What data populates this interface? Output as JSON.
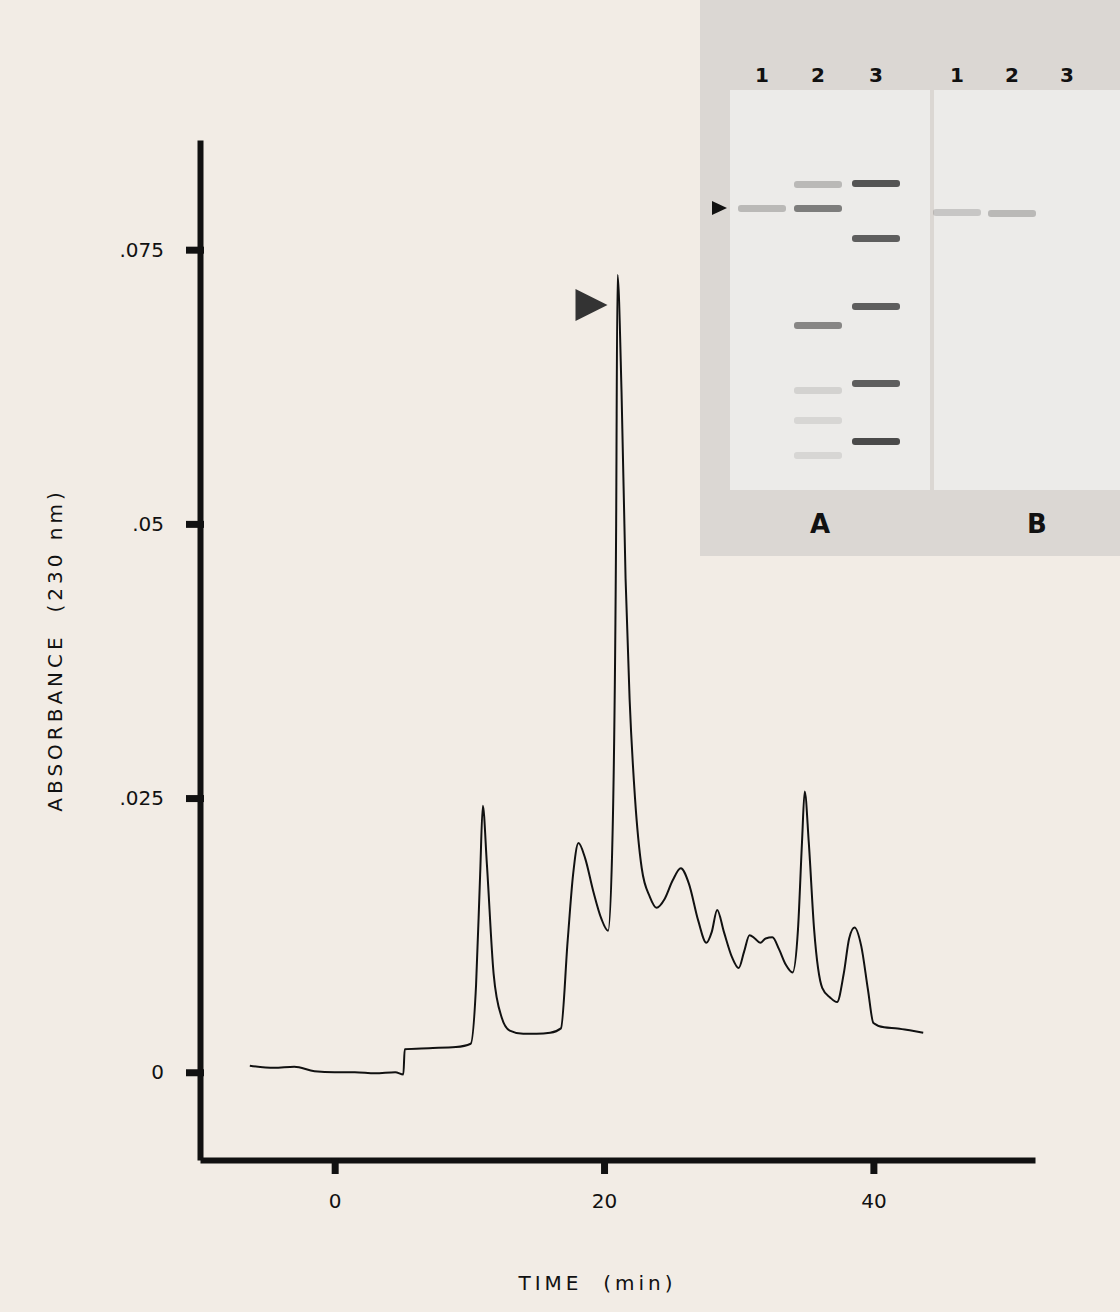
{
  "chart_data": {
    "type": "line",
    "x_label": "TIME  (min)",
    "y_label": "ABSORBANCE  (230 nm)",
    "color": "#111111",
    "x": [
      -6.3,
      -4.5,
      -3,
      -1.5,
      0,
      1.5,
      3,
      4.5,
      5.1,
      5.2,
      7,
      9,
      10.1,
      10.5,
      10.8,
      11.0,
      11.3,
      11.8,
      12.4,
      13,
      14,
      15,
      16,
      16.8,
      17.3,
      17.7,
      18.1,
      18.6,
      19.2,
      19.8,
      20.3,
      20.6,
      20.9,
      21.0,
      21.3,
      21.6,
      21.9,
      22.3,
      22.8,
      23.4,
      23.9,
      24.5,
      25.1,
      25.7,
      26.3,
      27.0,
      27.6,
      28.0,
      28.4,
      28.9,
      29.5,
      30.0,
      30.4,
      30.8,
      31.2,
      31.6,
      32.0,
      32.5,
      33.0,
      33.5,
      34.0,
      34.4,
      34.7,
      34.9,
      35.2,
      35.6,
      36.2,
      36.8,
      37.3,
      37.8,
      38.2,
      38.6,
      39.1,
      39.6,
      40.0,
      40.8,
      41.8,
      42.8,
      43.7
    ],
    "values": [
      0.0006,
      0.0004,
      0.0005,
      0.0001,
      0.0,
      0.0,
      -0.0001,
      0.0,
      -0.0002,
      0.0021,
      0.0022,
      0.0023,
      0.0026,
      0.008,
      0.018,
      0.0243,
      0.019,
      0.009,
      0.005,
      0.0038,
      0.0035,
      0.0035,
      0.0036,
      0.004,
      0.012,
      0.018,
      0.0209,
      0.0195,
      0.0165,
      0.014,
      0.0129,
      0.02,
      0.05,
      0.0727,
      0.062,
      0.045,
      0.034,
      0.025,
      0.0186,
      0.016,
      0.015,
      0.0158,
      0.0175,
      0.0186,
      0.0172,
      0.0138,
      0.0118,
      0.0128,
      0.0148,
      0.0128,
      0.0105,
      0.0095,
      0.011,
      0.0125,
      0.0122,
      0.0118,
      0.0122,
      0.0123,
      0.0112,
      0.0098,
      0.0091,
      0.013,
      0.021,
      0.0256,
      0.021,
      0.013,
      0.0077,
      0.0068,
      0.0064,
      0.009,
      0.0122,
      0.0132,
      0.0115,
      0.0075,
      0.0045,
      0.0041,
      0.004,
      0.0038,
      0.0036
    ],
    "xlim": [
      -10,
      52
    ],
    "ylim": [
      -0.008,
      0.085
    ],
    "xticks": [
      0,
      20,
      40
    ],
    "yticks": [
      0,
      {
        "value": 0.025,
        "label": ".025"
      },
      {
        "value": 0.05,
        "label": ".05"
      },
      {
        "value": 0.075,
        "label": ".075"
      }
    ]
  },
  "inset": {
    "panels": [
      {
        "label": "A",
        "lanes": [
          "1",
          "2",
          "3"
        ]
      },
      {
        "label": "B",
        "lanes": [
          "1",
          "2",
          "3"
        ]
      }
    ]
  }
}
